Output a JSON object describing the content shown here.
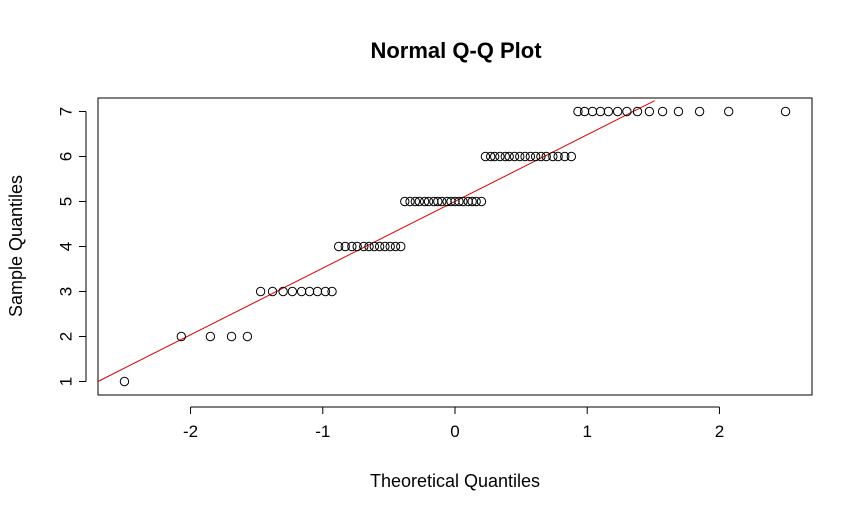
{
  "chart_data": {
    "type": "scatter",
    "title": "Normal Q-Q Plot",
    "xlabel": "Theoretical Quantiles",
    "ylabel": "Sample Quantiles",
    "xlim": [
      -2.7,
      2.7
    ],
    "ylim": [
      0.7,
      7.3
    ],
    "x_ticks": [
      -2,
      -1,
      0,
      1,
      2
    ],
    "x_tick_labels": [
      "-2",
      "-1",
      "0",
      "1",
      "2"
    ],
    "y_ticks": [
      1,
      2,
      3,
      4,
      5,
      6,
      7
    ],
    "y_tick_labels": [
      "1",
      "2",
      "3",
      "4",
      "5",
      "6",
      "7"
    ],
    "grid": false,
    "marker": "open-circle",
    "point_color": "#000000",
    "line_color": "#dd0000",
    "reference_line": {
      "x1": -2.7,
      "y1": 1.0,
      "x2": 1.51,
      "y2": 7.24
    },
    "points": [
      {
        "x": -2.5,
        "y": 1
      },
      {
        "x": -2.07,
        "y": 2
      },
      {
        "x": -1.85,
        "y": 2
      },
      {
        "x": -1.69,
        "y": 2
      },
      {
        "x": -1.57,
        "y": 2
      },
      {
        "x": -1.47,
        "y": 3
      },
      {
        "x": -1.38,
        "y": 3
      },
      {
        "x": -1.3,
        "y": 3
      },
      {
        "x": -1.23,
        "y": 3
      },
      {
        "x": -1.16,
        "y": 3
      },
      {
        "x": -1.1,
        "y": 3
      },
      {
        "x": -1.04,
        "y": 3
      },
      {
        "x": -0.98,
        "y": 3
      },
      {
        "x": -0.93,
        "y": 3
      },
      {
        "x": -0.88,
        "y": 4
      },
      {
        "x": -0.83,
        "y": 4
      },
      {
        "x": -0.78,
        "y": 4
      },
      {
        "x": -0.74,
        "y": 4
      },
      {
        "x": -0.69,
        "y": 4
      },
      {
        "x": -0.65,
        "y": 4
      },
      {
        "x": -0.61,
        "y": 4
      },
      {
        "x": -0.57,
        "y": 4
      },
      {
        "x": -0.53,
        "y": 4
      },
      {
        "x": -0.49,
        "y": 4
      },
      {
        "x": -0.45,
        "y": 4
      },
      {
        "x": -0.41,
        "y": 4
      },
      {
        "x": -0.38,
        "y": 5
      },
      {
        "x": -0.34,
        "y": 5
      },
      {
        "x": -0.3,
        "y": 5
      },
      {
        "x": -0.27,
        "y": 5
      },
      {
        "x": -0.23,
        "y": 5
      },
      {
        "x": -0.2,
        "y": 5
      },
      {
        "x": -0.16,
        "y": 5
      },
      {
        "x": -0.13,
        "y": 5
      },
      {
        "x": -0.1,
        "y": 5
      },
      {
        "x": -0.06,
        "y": 5
      },
      {
        "x": -0.03,
        "y": 5
      },
      {
        "x": 0.0,
        "y": 5
      },
      {
        "x": 0.03,
        "y": 5
      },
      {
        "x": 0.06,
        "y": 5
      },
      {
        "x": 0.1,
        "y": 5
      },
      {
        "x": 0.13,
        "y": 5
      },
      {
        "x": 0.16,
        "y": 5
      },
      {
        "x": 0.2,
        "y": 5
      },
      {
        "x": 0.23,
        "y": 6
      },
      {
        "x": 0.27,
        "y": 6
      },
      {
        "x": 0.3,
        "y": 6
      },
      {
        "x": 0.34,
        "y": 6
      },
      {
        "x": 0.38,
        "y": 6
      },
      {
        "x": 0.41,
        "y": 6
      },
      {
        "x": 0.45,
        "y": 6
      },
      {
        "x": 0.49,
        "y": 6
      },
      {
        "x": 0.53,
        "y": 6
      },
      {
        "x": 0.57,
        "y": 6
      },
      {
        "x": 0.61,
        "y": 6
      },
      {
        "x": 0.65,
        "y": 6
      },
      {
        "x": 0.69,
        "y": 6
      },
      {
        "x": 0.74,
        "y": 6
      },
      {
        "x": 0.78,
        "y": 6
      },
      {
        "x": 0.83,
        "y": 6
      },
      {
        "x": 0.88,
        "y": 6
      },
      {
        "x": 0.93,
        "y": 7
      },
      {
        "x": 0.98,
        "y": 7
      },
      {
        "x": 1.04,
        "y": 7
      },
      {
        "x": 1.1,
        "y": 7
      },
      {
        "x": 1.16,
        "y": 7
      },
      {
        "x": 1.23,
        "y": 7
      },
      {
        "x": 1.3,
        "y": 7
      },
      {
        "x": 1.38,
        "y": 7
      },
      {
        "x": 1.47,
        "y": 7
      },
      {
        "x": 1.57,
        "y": 7
      },
      {
        "x": 1.69,
        "y": 7
      },
      {
        "x": 1.85,
        "y": 7
      },
      {
        "x": 2.07,
        "y": 7
      },
      {
        "x": 2.5,
        "y": 7
      }
    ]
  }
}
